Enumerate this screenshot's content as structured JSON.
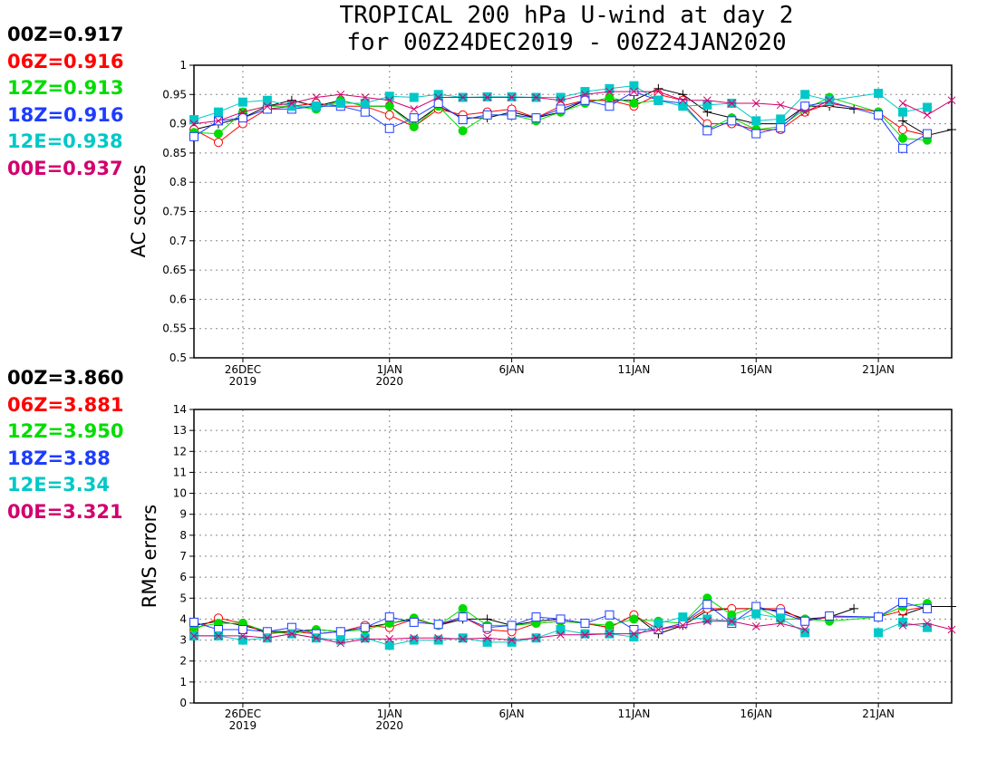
{
  "title": {
    "line1": "TROPICAL 200 hPa U-wind at day 2",
    "line2": "for 00Z24DEC2019 - 00Z24JAN2020"
  },
  "legend_ac": [
    {
      "text": "00Z=0.917",
      "color": "#000000"
    },
    {
      "text": "06Z=0.916",
      "color": "#ff0000"
    },
    {
      "text": "12Z=0.913",
      "color": "#00dc00"
    },
    {
      "text": "18Z=0.916",
      "color": "#1e3cff"
    },
    {
      "text": "12E=0.938",
      "color": "#00c8c8"
    },
    {
      "text": "00E=0.937",
      "color": "#d2006e"
    }
  ],
  "legend_rms": [
    {
      "text": "00Z=3.860",
      "color": "#000000"
    },
    {
      "text": "06Z=3.881",
      "color": "#ff0000"
    },
    {
      "text": "12Z=3.950",
      "color": "#00dc00"
    },
    {
      "text": "18Z=3.88",
      "color": "#1e3cff"
    },
    {
      "text": "12E=3.34",
      "color": "#00c8c8"
    },
    {
      "text": "00E=3.321",
      "color": "#d2006e"
    }
  ],
  "chart_data": [
    {
      "type": "line",
      "ylabel": "AC scores",
      "ylim": [
        0.5,
        1
      ],
      "yticks": [
        "0.5",
        "0.55",
        "0.6",
        "0.65",
        "0.7",
        "0.75",
        "0.8",
        "0.85",
        "0.9",
        "0.95",
        "1"
      ],
      "xlim": [
        0,
        31
      ],
      "xticks": [
        {
          "x": 2,
          "label": "26DEC",
          "sub": "2019"
        },
        {
          "x": 8,
          "label": "1JAN",
          "sub": "2020"
        },
        {
          "x": 13,
          "label": "6JAN",
          "sub": ""
        },
        {
          "x": 18,
          "label": "11JAN",
          "sub": ""
        },
        {
          "x": 23,
          "label": "16JAN",
          "sub": ""
        },
        {
          "x": 28,
          "label": "21JAN",
          "sub": ""
        }
      ],
      "grid": true,
      "series": [
        {
          "name": "00Z",
          "color": "#000000",
          "marker": "plus",
          "x": [
            0,
            1,
            2,
            3,
            4,
            5,
            6,
            7,
            8,
            9,
            10,
            11,
            12,
            13,
            14,
            15,
            16,
            17,
            18,
            19,
            20,
            21,
            22,
            23,
            24,
            25,
            26,
            27,
            28,
            29,
            30,
            31
          ],
          "y": [
            0.89,
            0.9,
            0.91,
            0.93,
            0.94,
            0.93,
            0.94,
            0.93,
            0.93,
            0.9,
            0.93,
            0.91,
            0.91,
            0.92,
            0.91,
            0.92,
            0.94,
            0.94,
            0.94,
            0.96,
            0.95,
            0.92,
            0.91,
            0.9,
            0.9,
            0.93,
            0.93,
            0.925,
            null,
            0.905,
            0.88,
            0.89
          ]
        },
        {
          "name": "06Z",
          "color": "#ff0000",
          "marker": "circle-open",
          "x": [
            0,
            1,
            2,
            3,
            4,
            5,
            6,
            7,
            8,
            9,
            10,
            11,
            12,
            13,
            14,
            15,
            16,
            17,
            18,
            19,
            20,
            21,
            22,
            23,
            24,
            25,
            26,
            28,
            29,
            30
          ],
          "y": [
            0.89,
            0.868,
            0.9,
            0.925,
            0.93,
            0.935,
            0.93,
            0.93,
            0.915,
            0.895,
            0.925,
            0.915,
            0.92,
            0.925,
            0.91,
            0.93,
            0.94,
            0.94,
            0.93,
            0.95,
            0.94,
            0.9,
            0.9,
            0.89,
            0.89,
            0.92,
            0.935,
            0.92,
            0.89,
            0.88
          ]
        },
        {
          "name": "12Z",
          "color": "#00dc00",
          "marker": "circle-filled",
          "x": [
            0,
            1,
            2,
            3,
            4,
            5,
            6,
            7,
            8,
            9,
            10,
            11,
            12,
            13,
            14,
            15,
            16,
            17,
            18,
            19,
            20,
            21,
            22,
            23,
            24,
            25,
            26,
            28,
            29,
            30
          ],
          "y": [
            0.885,
            0.883,
            0.92,
            0.93,
            0.93,
            0.925,
            0.94,
            0.93,
            0.93,
            0.895,
            0.93,
            0.888,
            0.915,
            0.915,
            0.905,
            0.92,
            0.935,
            0.945,
            0.935,
            0.94,
            0.93,
            0.89,
            0.91,
            0.89,
            0.895,
            0.925,
            0.945,
            0.92,
            0.875,
            0.872
          ]
        },
        {
          "name": "18Z",
          "color": "#1e3cff",
          "marker": "square-open",
          "x": [
            0,
            1,
            2,
            3,
            4,
            5,
            6,
            7,
            8,
            9,
            10,
            11,
            12,
            13,
            14,
            15,
            16,
            17,
            18,
            19,
            20,
            21,
            22,
            23,
            24,
            25,
            26,
            28,
            29,
            30
          ],
          "y": [
            0.878,
            0.905,
            0.91,
            0.925,
            0.925,
            0.93,
            0.93,
            0.92,
            0.892,
            0.91,
            0.935,
            0.907,
            0.915,
            0.915,
            0.91,
            0.925,
            0.94,
            0.93,
            0.955,
            0.94,
            0.935,
            0.888,
            0.905,
            0.883,
            0.893,
            0.93,
            0.938,
            0.915,
            0.858,
            0.883
          ]
        },
        {
          "name": "12E",
          "color": "#00c8c8",
          "marker": "square-filled",
          "x": [
            0,
            1,
            2,
            3,
            4,
            5,
            6,
            7,
            8,
            9,
            10,
            11,
            12,
            13,
            14,
            15,
            16,
            17,
            18,
            19,
            20,
            21,
            22,
            23,
            24,
            25,
            26,
            28,
            29,
            30
          ],
          "y": [
            0.907,
            0.92,
            0.937,
            0.94,
            0.93,
            0.93,
            0.935,
            0.935,
            0.947,
            0.945,
            0.95,
            0.945,
            0.946,
            0.946,
            0.945,
            0.945,
            0.955,
            0.96,
            0.965,
            0.94,
            0.93,
            0.932,
            0.935,
            0.905,
            0.908,
            0.95,
            0.94,
            0.952,
            0.92,
            0.928
          ]
        },
        {
          "name": "00E",
          "color": "#d2006e",
          "marker": "x",
          "x": [
            0,
            1,
            2,
            3,
            4,
            5,
            6,
            7,
            8,
            9,
            10,
            11,
            12,
            13,
            14,
            15,
            16,
            17,
            18,
            19,
            20,
            21,
            22,
            23,
            24,
            25,
            26,
            28,
            29,
            30,
            31
          ],
          "y": [
            0.9,
            0.905,
            0.92,
            0.93,
            0.935,
            0.945,
            0.95,
            0.945,
            0.94,
            0.925,
            0.945,
            0.945,
            0.945,
            0.945,
            0.945,
            0.94,
            0.95,
            0.955,
            0.955,
            0.955,
            0.94,
            0.94,
            0.935,
            0.935,
            0.932,
            0.92,
            0.94,
            null,
            0.935,
            0.915,
            0.94
          ]
        }
      ]
    },
    {
      "type": "line",
      "ylabel": "RMS errors",
      "ylim": [
        0,
        14
      ],
      "yticks": [
        "0",
        "1",
        "2",
        "3",
        "4",
        "5",
        "6",
        "7",
        "8",
        "9",
        "10",
        "11",
        "12",
        "13",
        "14"
      ],
      "xlim": [
        0,
        31
      ],
      "xticks": [
        {
          "x": 2,
          "label": "26DEC",
          "sub": "2019"
        },
        {
          "x": 8,
          "label": "1JAN",
          "sub": "2020"
        },
        {
          "x": 13,
          "label": "6JAN",
          "sub": ""
        },
        {
          "x": 18,
          "label": "11JAN",
          "sub": ""
        },
        {
          "x": 23,
          "label": "16JAN",
          "sub": ""
        },
        {
          "x": 28,
          "label": "21JAN",
          "sub": ""
        }
      ],
      "grid": true,
      "series": [
        {
          "name": "00Z",
          "color": "#000000",
          "marker": "plus",
          "x": [
            0,
            1,
            2,
            3,
            4,
            5,
            6,
            7,
            8,
            9,
            10,
            11,
            12,
            13,
            14,
            15,
            16,
            17,
            18,
            19,
            20,
            21,
            22,
            23,
            24,
            25,
            26,
            27,
            28,
            29,
            30,
            31
          ],
          "y": [
            3.7,
            3.9,
            3.7,
            3.4,
            3.4,
            3.5,
            3.4,
            3.6,
            3.8,
            4.0,
            3.7,
            4.0,
            4.0,
            3.7,
            3.9,
            4.0,
            3.8,
            3.6,
            4.2,
            3.3,
            3.7,
            4.4,
            4.5,
            4.5,
            4.4,
            4.0,
            4.1,
            4.5,
            null,
            4.2,
            4.6,
            4.6
          ]
        },
        {
          "name": "06Z",
          "color": "#ff0000",
          "marker": "circle-open",
          "x": [
            0,
            1,
            2,
            3,
            4,
            5,
            6,
            7,
            8,
            9,
            10,
            11,
            12,
            13,
            14,
            15,
            16,
            17,
            18,
            19,
            20,
            21,
            22,
            23,
            24,
            25,
            26,
            28,
            29,
            30
          ],
          "y": [
            3.5,
            4.05,
            3.8,
            3.3,
            3.4,
            3.3,
            3.4,
            3.7,
            3.6,
            4.0,
            3.7,
            4.1,
            3.5,
            3.4,
            3.8,
            3.9,
            3.8,
            3.6,
            4.2,
            3.5,
            3.8,
            4.5,
            4.5,
            4.5,
            4.5,
            3.9,
            4.1,
            4.1,
            4.4,
            4.6
          ]
        },
        {
          "name": "12Z",
          "color": "#00dc00",
          "marker": "circle-filled",
          "x": [
            0,
            1,
            2,
            3,
            4,
            5,
            6,
            7,
            8,
            9,
            10,
            11,
            12,
            13,
            14,
            15,
            16,
            17,
            18,
            19,
            20,
            21,
            22,
            23,
            24,
            25,
            26,
            28,
            29,
            30
          ],
          "y": [
            3.6,
            3.8,
            3.8,
            3.4,
            3.3,
            3.5,
            3.4,
            3.5,
            3.8,
            4.05,
            3.7,
            4.5,
            3.7,
            3.7,
            3.8,
            3.9,
            3.8,
            3.7,
            4.0,
            3.9,
            3.8,
            5.0,
            4.2,
            4.6,
            4.0,
            4.0,
            3.9,
            4.1,
            4.6,
            4.75
          ]
        },
        {
          "name": "18Z",
          "color": "#1e3cff",
          "marker": "square-open",
          "x": [
            0,
            1,
            2,
            3,
            4,
            5,
            6,
            7,
            8,
            9,
            10,
            11,
            12,
            13,
            14,
            15,
            16,
            17,
            18,
            19,
            20,
            21,
            22,
            23,
            24,
            25,
            26,
            28,
            29,
            30
          ],
          "y": [
            3.85,
            3.5,
            3.5,
            3.4,
            3.6,
            3.3,
            3.4,
            3.6,
            4.1,
            3.85,
            3.75,
            4.1,
            3.6,
            3.7,
            4.1,
            4.0,
            3.8,
            4.2,
            3.5,
            3.5,
            3.8,
            4.7,
            3.8,
            4.6,
            4.3,
            3.9,
            4.15,
            4.1,
            4.8,
            4.5
          ]
        },
        {
          "name": "12E",
          "color": "#00c8c8",
          "marker": "square-filled",
          "x": [
            0,
            1,
            2,
            3,
            4,
            5,
            6,
            7,
            8,
            9,
            10,
            11,
            12,
            13,
            14,
            15,
            16,
            17,
            18,
            19,
            20,
            21,
            22,
            23,
            24,
            25,
            26,
            28,
            29,
            30
          ],
          "y": [
            3.2,
            3.2,
            3.0,
            3.1,
            3.3,
            3.1,
            3.0,
            3.1,
            2.75,
            3.0,
            3.0,
            3.1,
            2.9,
            2.9,
            3.1,
            3.5,
            3.3,
            3.3,
            3.15,
            3.8,
            4.1,
            4.0,
            3.9,
            4.25,
            4.05,
            3.35,
            null,
            3.35,
            3.85,
            3.6
          ]
        },
        {
          "name": "00E",
          "color": "#d2006e",
          "marker": "x",
          "x": [
            0,
            1,
            2,
            3,
            4,
            5,
            6,
            7,
            8,
            9,
            10,
            11,
            12,
            13,
            14,
            15,
            16,
            17,
            18,
            19,
            20,
            21,
            22,
            23,
            24,
            25,
            26,
            28,
            29,
            30,
            31
          ],
          "y": [
            3.2,
            3.2,
            3.2,
            3.1,
            3.3,
            3.1,
            2.85,
            3.05,
            3.05,
            3.1,
            3.1,
            3.05,
            3.1,
            3.0,
            3.1,
            3.25,
            3.25,
            3.3,
            3.3,
            3.5,
            3.7,
            3.9,
            3.9,
            3.65,
            3.8,
            3.5,
            null,
            null,
            3.7,
            3.8,
            3.5
          ]
        }
      ]
    }
  ]
}
